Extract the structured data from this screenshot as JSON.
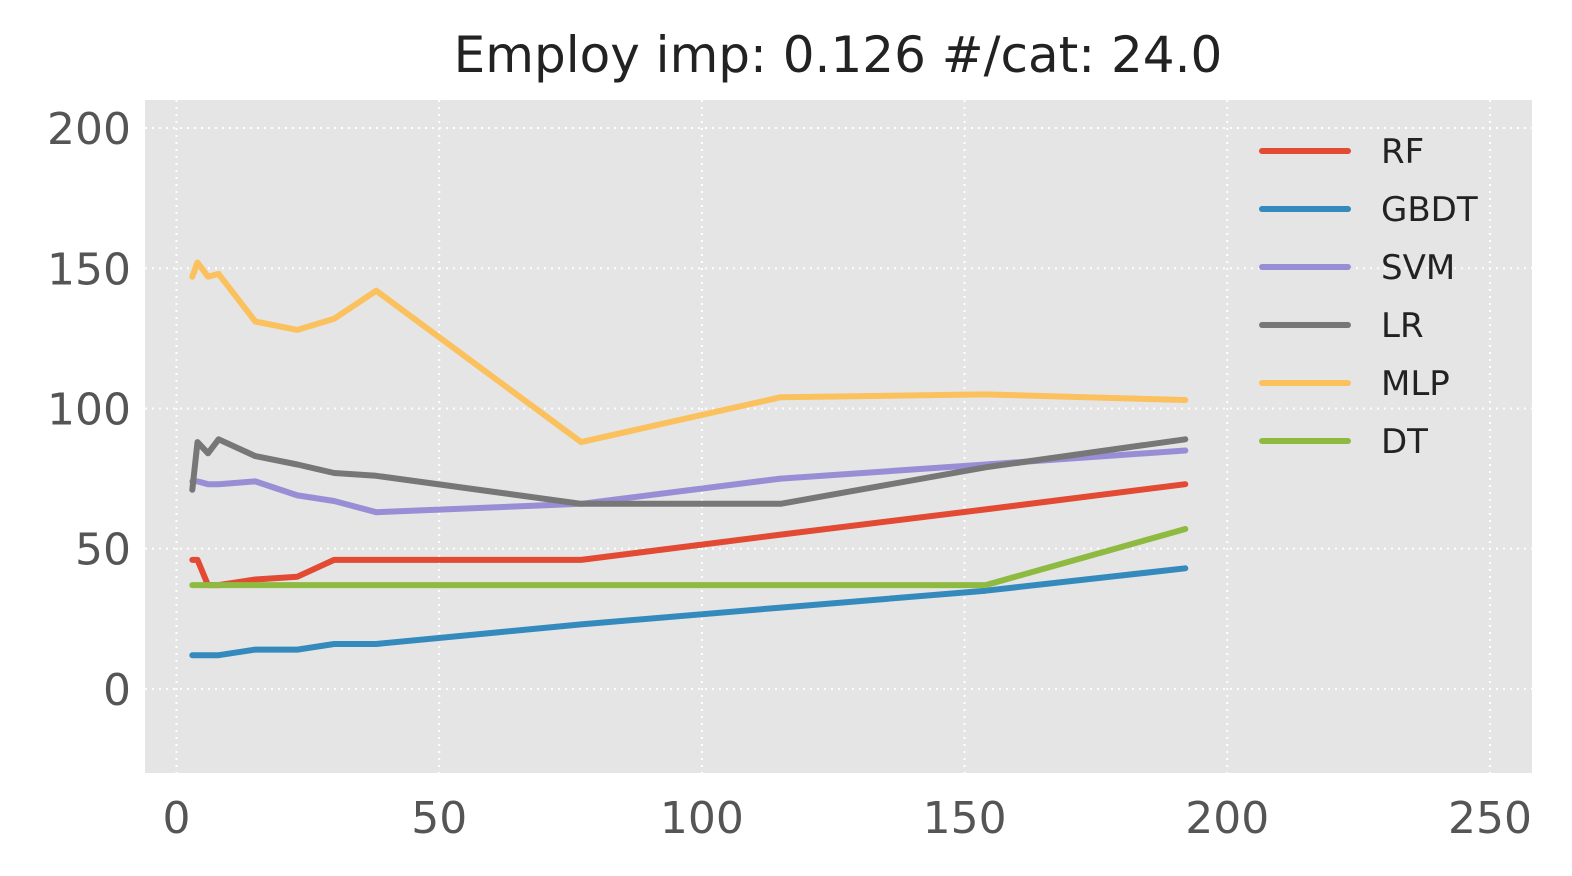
{
  "chart_data": {
    "type": "line",
    "title": "Employ imp: 0.126 #/cat: 24.0",
    "xlabel": "",
    "ylabel": "",
    "xlim": [
      -6,
      258
    ],
    "ylim": [
      -30,
      210
    ],
    "xticks": [
      0,
      50,
      100,
      150,
      200,
      250
    ],
    "yticks": [
      0,
      50,
      100,
      150,
      200
    ],
    "grid": true,
    "legend_position": "top-right",
    "series": [
      {
        "name": "RF",
        "color": "#E24A33",
        "points": [
          [
            3,
            46
          ],
          [
            4,
            46
          ],
          [
            6,
            37
          ],
          [
            8,
            37
          ],
          [
            15,
            39
          ],
          [
            23,
            40
          ],
          [
            30,
            46
          ],
          [
            38,
            46
          ],
          [
            77,
            46
          ],
          [
            115,
            55
          ],
          [
            154,
            64
          ],
          [
            192,
            73
          ]
        ]
      },
      {
        "name": "GBDT",
        "color": "#348ABD",
        "points": [
          [
            3,
            12
          ],
          [
            4,
            12
          ],
          [
            6,
            12
          ],
          [
            8,
            12
          ],
          [
            15,
            14
          ],
          [
            23,
            14
          ],
          [
            30,
            16
          ],
          [
            38,
            16
          ],
          [
            77,
            23
          ],
          [
            115,
            29
          ],
          [
            154,
            35
          ],
          [
            192,
            43
          ]
        ]
      },
      {
        "name": "SVM",
        "color": "#988ED5",
        "points": [
          [
            3,
            74
          ],
          [
            4,
            74
          ],
          [
            6,
            73
          ],
          [
            8,
            73
          ],
          [
            15,
            74
          ],
          [
            23,
            69
          ],
          [
            30,
            67
          ],
          [
            38,
            63
          ],
          [
            77,
            66
          ],
          [
            115,
            75
          ],
          [
            154,
            80
          ],
          [
            192,
            85
          ]
        ]
      },
      {
        "name": "LR",
        "color": "#777777",
        "points": [
          [
            3,
            71
          ],
          [
            4,
            88
          ],
          [
            6,
            84
          ],
          [
            8,
            89
          ],
          [
            15,
            83
          ],
          [
            23,
            80
          ],
          [
            30,
            77
          ],
          [
            38,
            76
          ],
          [
            77,
            66
          ],
          [
            115,
            66
          ],
          [
            154,
            79
          ],
          [
            192,
            89
          ]
        ]
      },
      {
        "name": "MLP",
        "color": "#FBC15E",
        "points": [
          [
            3,
            147
          ],
          [
            4,
            152
          ],
          [
            6,
            147
          ],
          [
            8,
            148
          ],
          [
            15,
            131
          ],
          [
            23,
            128
          ],
          [
            30,
            132
          ],
          [
            38,
            142
          ],
          [
            77,
            88
          ],
          [
            115,
            104
          ],
          [
            154,
            105
          ],
          [
            192,
            103
          ]
        ]
      },
      {
        "name": "DT",
        "color": "#8EBA42",
        "points": [
          [
            3,
            37
          ],
          [
            4,
            37
          ],
          [
            6,
            37
          ],
          [
            8,
            37
          ],
          [
            15,
            37
          ],
          [
            23,
            37
          ],
          [
            30,
            37
          ],
          [
            38,
            37
          ],
          [
            77,
            37
          ],
          [
            115,
            37
          ],
          [
            154,
            37
          ],
          [
            192,
            57
          ]
        ]
      }
    ]
  }
}
